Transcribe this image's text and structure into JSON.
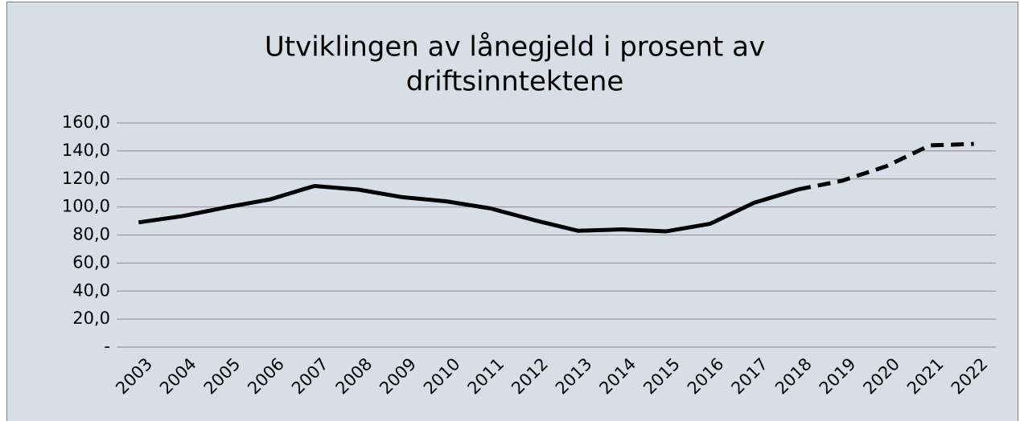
{
  "chart_data": {
    "type": "line",
    "title_lines": [
      "Utviklingen av lånegjeld i prosent av",
      "driftsinntektene"
    ],
    "categories": [
      "2003",
      "2004",
      "2005",
      "2006",
      "2007",
      "2008",
      "2009",
      "2010",
      "2011",
      "2012",
      "2013",
      "2014",
      "2015",
      "2016",
      "2017",
      "2018",
      "2019",
      "2020",
      "2021",
      "2022"
    ],
    "series": [
      {
        "color": "#000000",
        "dash": false,
        "values": [
          89,
          93.5,
          99.8,
          105.5,
          115,
          112.4,
          107,
          104,
          99,
          90.6,
          83,
          84,
          82.6,
          88,
          103,
          112.5,
          null,
          null,
          null,
          null
        ]
      },
      {
        "color": "#000000",
        "dash": true,
        "values": [
          null,
          null,
          null,
          null,
          null,
          null,
          null,
          null,
          null,
          null,
          null,
          null,
          null,
          null,
          null,
          112.5,
          118.7,
          129,
          144,
          145
        ]
      }
    ],
    "ylim": [
      0,
      160
    ],
    "yticks": [
      {
        "value": 0,
        "label": "-"
      },
      {
        "value": 20,
        "label": "20,0"
      },
      {
        "value": 40,
        "label": "40,0"
      },
      {
        "value": 60,
        "label": "60,0"
      },
      {
        "value": 80,
        "label": "80,0"
      },
      {
        "value": 100,
        "label": "100,0"
      },
      {
        "value": 120,
        "label": "120,0"
      },
      {
        "value": 140,
        "label": "140,0"
      },
      {
        "value": 160,
        "label": "160,0"
      }
    ],
    "grid": true
  }
}
